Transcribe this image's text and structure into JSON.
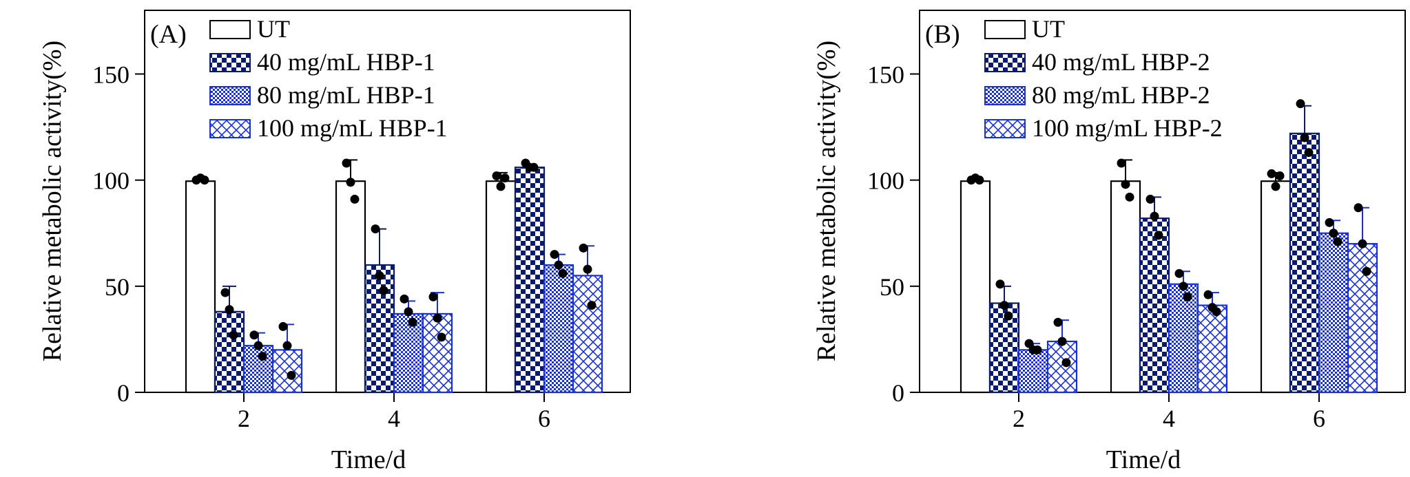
{
  "colors": {
    "navy": "#0a1a6e",
    "blue": "#1830d8",
    "black": "#000000"
  },
  "chart_data": [
    {
      "type": "bar",
      "panel_label": "(A)",
      "xlabel": "Time/d",
      "ylabel": "Relative metabolic activity(%)",
      "ylim": [
        0,
        150
      ],
      "yticks": [
        0,
        50,
        100,
        150
      ],
      "categories": [
        "2",
        "4",
        "6"
      ],
      "legend_position": "top-left",
      "series": [
        {
          "name": "UT",
          "pattern": "empty",
          "values": [
            99.5,
            99.5,
            99.5
          ],
          "errors": [
            2,
            10,
            4
          ],
          "points": [
            [
              100,
              101,
              100
            ],
            [
              108,
              99,
              91
            ],
            [
              102,
              97,
              101
            ]
          ]
        },
        {
          "name": "40 mg/mL HBP-1",
          "pattern": "checker",
          "values": [
            38,
            60,
            106
          ],
          "errors": [
            12,
            17,
            1.5
          ],
          "points": [
            [
              47,
              39,
              27
            ],
            [
              77,
              55,
              48
            ],
            [
              108,
              106,
              106
            ]
          ]
        },
        {
          "name": "80 mg/mL HBP-1",
          "pattern": "fine-checker",
          "values": [
            22,
            37,
            60
          ],
          "errors": [
            6,
            6,
            5
          ],
          "points": [
            [
              27,
              22,
              17
            ],
            [
              44,
              38,
              33
            ],
            [
              65,
              60,
              56
            ]
          ]
        },
        {
          "name": "100 mg/mL HBP-1",
          "pattern": "crosshatch",
          "values": [
            20,
            37,
            55
          ],
          "errors": [
            12,
            10,
            14
          ],
          "points": [
            [
              31,
              22,
              8
            ],
            [
              45,
              35,
              26
            ],
            [
              68,
              58,
              41
            ]
          ]
        }
      ]
    },
    {
      "type": "bar",
      "panel_label": "(B)",
      "xlabel": "Time/d",
      "ylabel": "Relative metabolic activity(%)",
      "ylim": [
        0,
        150
      ],
      "yticks": [
        0,
        50,
        100,
        150
      ],
      "categories": [
        "2",
        "4",
        "6"
      ],
      "legend_position": "top-left",
      "series": [
        {
          "name": "UT",
          "pattern": "empty",
          "values": [
            99.5,
            99.5,
            99.5
          ],
          "errors": [
            2,
            10,
            4
          ],
          "points": [
            [
              100,
              101,
              100
            ],
            [
              108,
              98,
              92
            ],
            [
              103,
              97,
              102
            ]
          ]
        },
        {
          "name": "40 mg/mL HBP-2",
          "pattern": "checker",
          "values": [
            42,
            82,
            122
          ],
          "errors": [
            8,
            10,
            13
          ],
          "points": [
            [
              51,
              41,
              36
            ],
            [
              91,
              83,
              74
            ],
            [
              136,
              120,
              113
            ]
          ]
        },
        {
          "name": "80 mg/mL HBP-2",
          "pattern": "fine-checker",
          "values": [
            20,
            51,
            75
          ],
          "errors": [
            3,
            6,
            6
          ],
          "points": [
            [
              23,
              20,
              20
            ],
            [
              56,
              50,
              45
            ],
            [
              80,
              75,
              71
            ]
          ]
        },
        {
          "name": "100 mg/mL HBP-2",
          "pattern": "crosshatch",
          "values": [
            24,
            41,
            70
          ],
          "errors": [
            10,
            6,
            17
          ],
          "points": [
            [
              33,
              24,
              14
            ],
            [
              46,
              40,
              38
            ],
            [
              87,
              70,
              57
            ]
          ]
        }
      ]
    }
  ]
}
